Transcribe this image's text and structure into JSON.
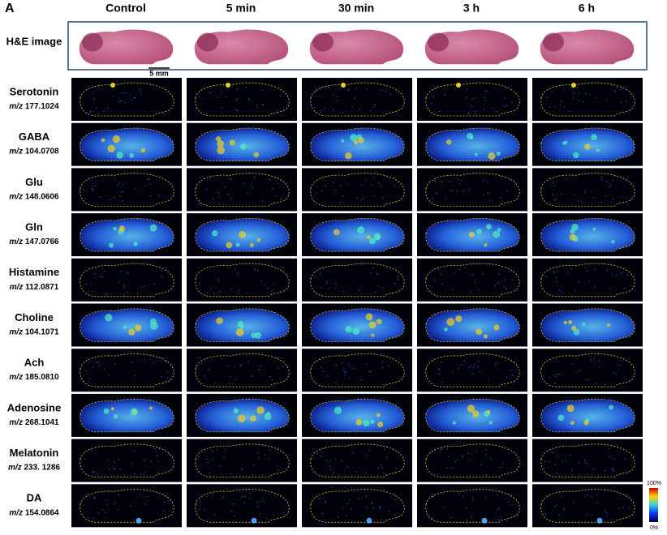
{
  "panel_label": "A",
  "columns": [
    "Control",
    "5 min",
    "30 min",
    "3 h",
    "6 h"
  ],
  "he_label": "H&E image",
  "scale_bar": "5 mm",
  "rows": [
    {
      "name": "Serotonin",
      "mz_prefix": "m/z",
      "mz": "177.1024"
    },
    {
      "name": "GABA",
      "mz_prefix": "m/z",
      "mz": "104.0708"
    },
    {
      "name": "Glu",
      "mz_prefix": "m/z",
      "mz": "148.0606"
    },
    {
      "name": "Gln",
      "mz_prefix": "m/z",
      "mz": "147.0766"
    },
    {
      "name": "Histamine",
      "mz_prefix": "m/z",
      "mz": "112.0871"
    },
    {
      "name": "Choline",
      "mz_prefix": "m/z",
      "mz": "104.1071"
    },
    {
      "name": "Ach",
      "mz_prefix": "m/z",
      "mz": "185.0810"
    },
    {
      "name": "Adenosine",
      "mz_prefix": "m/z",
      "mz": "268.1041"
    },
    {
      "name": "Melatonin",
      "mz_prefix": "m/z",
      "mz": "233. 1286"
    },
    {
      "name": "DA",
      "mz_prefix": "m/z",
      "mz": "154.0864"
    }
  ],
  "colorbar": {
    "max": "100%",
    "min": "0%"
  }
}
